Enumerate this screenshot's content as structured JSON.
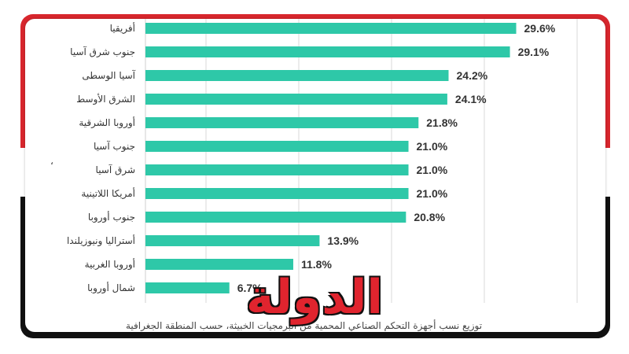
{
  "chart_data": {
    "type": "bar",
    "orientation": "horizontal",
    "categories": [
      "أفريقيا",
      "جنوب شرق آسيا",
      "آسيا الوسطى",
      "الشرق الأوسط",
      "أوروبا الشرقية",
      "جنوب آسيا",
      "شرق آسيا",
      "أمريكا اللاتينية",
      "جنوب أوروبا",
      "أستراليا ونيوزيلندا",
      "أوروبا الغربية",
      "شمال أوروبا"
    ],
    "values": [
      29.6,
      29.1,
      24.2,
      24.1,
      21.8,
      21.0,
      21.0,
      21.0,
      20.8,
      13.9,
      11.8,
      6.7
    ],
    "data_labels": [
      "29.6%",
      "29.1%",
      "24.2%",
      "24.1%",
      "21.8%",
      "21.0%",
      "21.0%",
      "21.0%",
      "20.8%",
      "13.9%",
      "11.8%",
      "6.7%"
    ],
    "title": "",
    "xlabel": "",
    "ylabel": "",
    "xlim": [
      0,
      32
    ],
    "grid": true,
    "legend": "none",
    "bar_color": "#2ec8a8"
  },
  "caption": "توزيع نسب أجهزة التحكم الصناعي المحمية من البرمجيات الخبيثة، حسب المنطقة الجغرافية",
  "logo": {
    "text": "الدولة"
  },
  "stray_mark": "،",
  "colors": {
    "frame_red": "#d8262d",
    "frame_black": "#111111",
    "logo_red": "#e0242e",
    "grid": "#d9d9d9"
  }
}
